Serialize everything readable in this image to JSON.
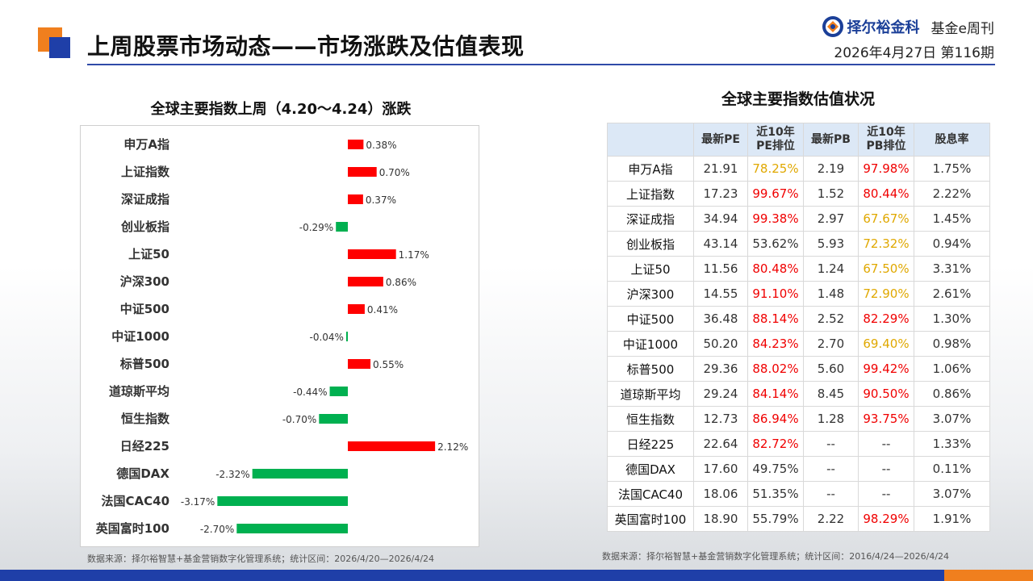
{
  "header": {
    "title": "上周股票市场动态——市场涨跌及估值表现",
    "brand_name": "择尔裕金科",
    "issue_label": "基金e周刊",
    "date_issue": "2026年4月27日  第116期"
  },
  "left_panel": {
    "title": "全球主要指数上周（4.20～4.24）涨跌",
    "source": "数据来源：择尔裕智慧+基金营销数字化管理系统；统计区间：2026/4/20—2026/4/24"
  },
  "right_panel": {
    "title": "全球主要指数估值状况",
    "source": "数据来源：择尔裕智慧+基金营销数字化管理系统；统计区间：2016/4/24—2026/4/24",
    "columns": [
      "",
      "最新PE",
      "近10年\nPE排位",
      "最新PB",
      "近10年\nPB排位",
      "股息率"
    ],
    "rows": [
      {
        "name": "申万A指",
        "pe": "21.91",
        "pe_rank": "78.25%",
        "pe_color": "gold",
        "pb": "2.19",
        "pb_rank": "97.98%",
        "pb_color": "red",
        "dy": "1.75%"
      },
      {
        "name": "上证指数",
        "pe": "17.23",
        "pe_rank": "99.67%",
        "pe_color": "red",
        "pb": "1.52",
        "pb_rank": "80.44%",
        "pb_color": "red",
        "dy": "2.22%"
      },
      {
        "name": "深证成指",
        "pe": "34.94",
        "pe_rank": "99.38%",
        "pe_color": "red",
        "pb": "2.97",
        "pb_rank": "67.67%",
        "pb_color": "gold",
        "dy": "1.45%"
      },
      {
        "name": "创业板指",
        "pe": "43.14",
        "pe_rank": "53.62%",
        "pe_color": "",
        "pb": "5.93",
        "pb_rank": "72.32%",
        "pb_color": "gold",
        "dy": "0.94%"
      },
      {
        "name": "上证50",
        "pe": "11.56",
        "pe_rank": "80.48%",
        "pe_color": "red",
        "pb": "1.24",
        "pb_rank": "67.50%",
        "pb_color": "gold",
        "dy": "3.31%"
      },
      {
        "name": "沪深300",
        "pe": "14.55",
        "pe_rank": "91.10%",
        "pe_color": "red",
        "pb": "1.48",
        "pb_rank": "72.90%",
        "pb_color": "gold",
        "dy": "2.61%"
      },
      {
        "name": "中证500",
        "pe": "36.48",
        "pe_rank": "88.14%",
        "pe_color": "red",
        "pb": "2.52",
        "pb_rank": "82.29%",
        "pb_color": "red",
        "dy": "1.30%"
      },
      {
        "name": "中证1000",
        "pe": "50.20",
        "pe_rank": "84.23%",
        "pe_color": "red",
        "pb": "2.70",
        "pb_rank": "69.40%",
        "pb_color": "gold",
        "dy": "0.98%"
      },
      {
        "name": "标普500",
        "pe": "29.36",
        "pe_rank": "88.02%",
        "pe_color": "red",
        "pb": "5.60",
        "pb_rank": "99.42%",
        "pb_color": "red",
        "dy": "1.06%"
      },
      {
        "name": "道琼斯平均",
        "pe": "29.24",
        "pe_rank": "84.14%",
        "pe_color": "red",
        "pb": "8.45",
        "pb_rank": "90.50%",
        "pb_color": "red",
        "dy": "0.86%"
      },
      {
        "name": "恒生指数",
        "pe": "12.73",
        "pe_rank": "86.94%",
        "pe_color": "red",
        "pb": "1.28",
        "pb_rank": "93.75%",
        "pb_color": "red",
        "dy": "3.07%"
      },
      {
        "name": "日经225",
        "pe": "22.64",
        "pe_rank": "82.72%",
        "pe_color": "red",
        "pb": "--",
        "pb_rank": "--",
        "pb_color": "",
        "dy": "1.33%"
      },
      {
        "name": "德国DAX",
        "pe": "17.60",
        "pe_rank": "49.75%",
        "pe_color": "",
        "pb": "--",
        "pb_rank": "--",
        "pb_color": "",
        "dy": "0.11%"
      },
      {
        "name": "法国CAC40",
        "pe": "18.06",
        "pe_rank": "51.35%",
        "pe_color": "",
        "pb": "--",
        "pb_rank": "--",
        "pb_color": "",
        "dy": "3.07%"
      },
      {
        "name": "英国富时100",
        "pe": "18.90",
        "pe_rank": "55.79%",
        "pe_color": "",
        "pb": "2.22",
        "pb_rank": "98.29%",
        "pb_color": "red",
        "dy": "1.91%"
      }
    ]
  },
  "colors": {
    "up": "#ff0000",
    "down": "#00b050",
    "accent_blue": "#1f3fa8",
    "accent_orange": "#f07f1e",
    "rank_red": "#ff0000",
    "rank_gold": "#e0a800"
  },
  "chart_data": {
    "type": "bar",
    "orientation": "horizontal",
    "title": "全球主要指数上周（4.20～4.24）涨跌",
    "categories": [
      "申万A指",
      "上证指数",
      "深证成指",
      "创业板指",
      "上证50",
      "沪深300",
      "中证500",
      "中证1000",
      "标普500",
      "道琼斯平均",
      "恒生指数",
      "日经225",
      "德国DAX",
      "法国CAC40",
      "英国富时100"
    ],
    "values": [
      0.38,
      0.7,
      0.37,
      -0.29,
      1.17,
      0.86,
      0.41,
      -0.04,
      0.55,
      -0.44,
      -0.7,
      2.12,
      -2.32,
      -3.17,
      -2.7
    ],
    "labels": [
      "0.38%",
      "0.70%",
      "0.37%",
      "-0.29%",
      "1.17%",
      "0.86%",
      "0.41%",
      "-0.04%",
      "0.55%",
      "-0.44%",
      "-0.70%",
      "2.12%",
      "-2.32%",
      "-3.17%",
      "-2.70%"
    ],
    "unit": "%",
    "xlim": [
      -3.17,
      2.12
    ],
    "grid": false,
    "legend": "none"
  }
}
